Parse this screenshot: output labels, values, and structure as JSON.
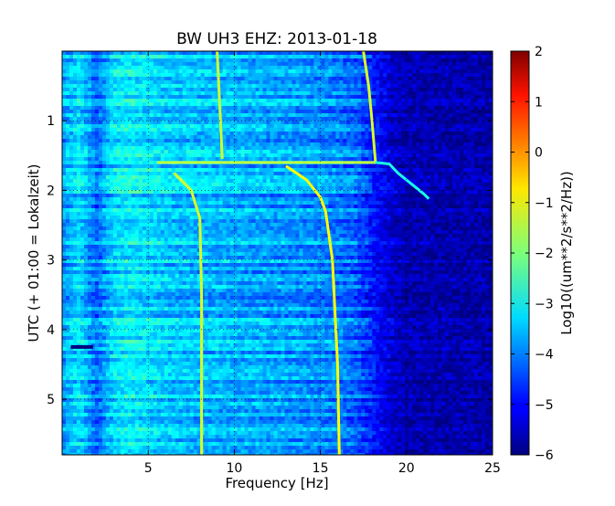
{
  "chart_data": {
    "type": "heatmap",
    "title": "BW UH3 EHZ: 2013-01-18",
    "xlabel": "Frequency [Hz]",
    "ylabel": "UTC (+ 01:00 = Lokalzeit)",
    "xlim": [
      0,
      25
    ],
    "ylim": [
      5.8,
      0
    ],
    "x_ticks": [
      5,
      10,
      15,
      20,
      25
    ],
    "x_tick_labels": [
      "5",
      "10",
      "15",
      "20",
      "25"
    ],
    "y_ticks": [
      1,
      2,
      3,
      4,
      5
    ],
    "y_tick_labels": [
      "1",
      "2",
      "3",
      "4",
      "5"
    ],
    "grid": true,
    "colormap": "jet",
    "colorbar": {
      "label": "Log10((um**2/s**2/Hz))",
      "range": [
        -6,
        2
      ],
      "ticks": [
        2,
        1,
        0,
        -1,
        -2,
        -3,
        -4,
        -5,
        -6
      ],
      "tick_labels": [
        "2",
        "1",
        "0",
        "−1",
        "−2",
        "−3",
        "−4",
        "−5",
        "−6"
      ]
    },
    "background_level": {
      "freq_hz": [
        0,
        1,
        2,
        3,
        4,
        5,
        6,
        8,
        10,
        12,
        14,
        16,
        17,
        18,
        19,
        20,
        25
      ],
      "log_psd": [
        -3.8,
        -3.2,
        -4.2,
        -3.2,
        -3.1,
        -3.2,
        -3.4,
        -3.5,
        -3.6,
        -3.7,
        -3.8,
        -4.0,
        -4.2,
        -4.8,
        -5.3,
        -5.6,
        -5.7
      ]
    },
    "series": [
      {
        "freq_hz": [
          9.0,
          9.2,
          9.3
        ],
        "utc_hour": [
          0.0,
          1.0,
          1.55
        ],
        "log_psd": -1.4
      },
      {
        "freq_hz": [
          17.5,
          17.8,
          18.0,
          18.2
        ],
        "utc_hour": [
          0.0,
          0.5,
          1.0,
          1.6
        ],
        "log_psd": -1.3
      },
      {
        "freq_hz": [
          6.5,
          7.5,
          8.0,
          8.1,
          8.1
        ],
        "utc_hour": [
          1.75,
          2.0,
          2.4,
          3.5,
          5.8
        ],
        "log_psd": -1.3
      },
      {
        "freq_hz": [
          13.0,
          14.2,
          15.0,
          15.3,
          15.7,
          16.0,
          16.1
        ],
        "utc_hour": [
          1.65,
          1.85,
          2.1,
          2.3,
          3.0,
          4.5,
          5.8
        ],
        "log_psd": -1.0
      },
      {
        "freq_hz": [
          18.2,
          19.0,
          19.5,
          20.0,
          20.5,
          21.0,
          21.3
        ],
        "utc_hour": [
          1.6,
          1.62,
          1.75,
          1.85,
          1.95,
          2.05,
          2.12
        ],
        "log_psd": -2.8
      },
      {
        "freq_hz": [
          5.5,
          6.2,
          10.0,
          13.0,
          16.0,
          18.2
        ],
        "utc_hour": [
          1.6,
          1.6,
          1.6,
          1.6,
          1.6,
          1.6
        ],
        "log_psd": -1.5
      },
      {
        "freq_hz": [
          0.5,
          1.8
        ],
        "utc_hour": [
          4.25,
          4.25
        ],
        "log_psd": -6.0
      }
    ]
  }
}
